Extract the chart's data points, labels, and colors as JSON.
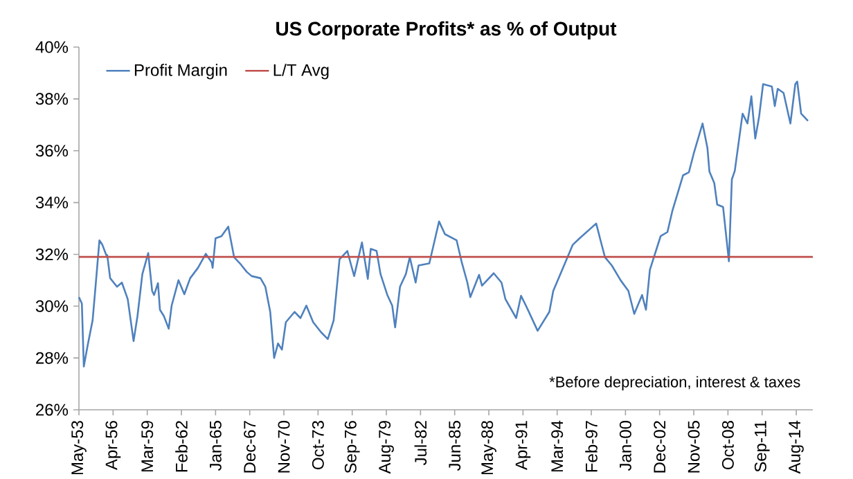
{
  "chart_data": {
    "type": "line",
    "title": "US Corporate Profits* as % of Output",
    "annotations": [
      "*Before depreciation, interest & taxes"
    ],
    "x": [
      "1953-05",
      "1953-08",
      "1953-10",
      "1954-02",
      "1954-07",
      "1954-10",
      "1955-02",
      "1955-05",
      "1955-09",
      "1955-10",
      "1956-01",
      "1956-08",
      "1957-01",
      "1957-07",
      "1958-01",
      "1958-05",
      "1958-10",
      "1959-04",
      "1959-08",
      "1959-10",
      "1960-02",
      "1960-04",
      "1960-08",
      "1961-01",
      "1961-04",
      "1961-11",
      "1962-05",
      "1962-11",
      "1963-07",
      "1964-03",
      "1964-09",
      "1964-10",
      "1965-01",
      "1965-07",
      "1966-02",
      "1966-08",
      "1967-02",
      "1967-09",
      "1968-02",
      "1968-11",
      "1969-04",
      "1969-09",
      "1970-01",
      "1970-05",
      "1970-09",
      "1971-01",
      "1971-10",
      "1972-04",
      "1972-10",
      "1973-05",
      "1974-01",
      "1974-08",
      "1975-02",
      "1975-08",
      "1976-04",
      "1976-08",
      "1976-11",
      "1977-07",
      "1978-01",
      "1978-04",
      "1978-10",
      "1979-02",
      "1979-09",
      "1980-02",
      "1980-05",
      "1980-10",
      "1981-04",
      "1981-08",
      "1982-02",
      "1982-05",
      "1983-04",
      "1983-09",
      "1984-02",
      "1984-08",
      "1985-08",
      "1986-01",
      "1986-07",
      "1986-10",
      "1987-07",
      "1987-10",
      "1988-10",
      "1989-06",
      "1989-10",
      "1990-09",
      "1991-02",
      "1991-07",
      "1992-07",
      "1993-07",
      "1993-11",
      "1994-09",
      "1995-07",
      "1996-02",
      "1997-07",
      "1997-12",
      "1998-04",
      "1998-11",
      "1999-08",
      "2000-04",
      "2000-10",
      "2001-06",
      "2001-10",
      "2002-02",
      "2003-01",
      "2003-08",
      "2004-01",
      "2004-12",
      "2005-06",
      "2005-11",
      "2006-08",
      "2007-01",
      "2007-03",
      "2007-08",
      "2007-11",
      "2008-05",
      "2008-11",
      "2009-02",
      "2009-05",
      "2010-01",
      "2010-06",
      "2010-10",
      "2011-02",
      "2011-06",
      "2011-10",
      "2012-07",
      "2012-10",
      "2013-01",
      "2013-07",
      "2014-02",
      "2014-07",
      "2014-09",
      "2015-01",
      "2015-08"
    ],
    "series": [
      {
        "name": "Profit Margin",
        "color": "#4f81bd",
        "values": [
          30.35,
          30.1,
          27.67,
          28.5,
          29.45,
          30.75,
          32.54,
          32.37,
          31.97,
          31.97,
          31.08,
          30.75,
          30.91,
          30.27,
          28.65,
          29.62,
          31.24,
          32.05,
          30.59,
          30.43,
          30.89,
          29.86,
          29.62,
          29.13,
          30.02,
          31.0,
          30.46,
          31.08,
          31.48,
          32.02,
          31.69,
          31.48,
          32.62,
          32.7,
          33.07,
          31.89,
          31.65,
          31.32,
          31.16,
          31.08,
          30.75,
          29.78,
          28.0,
          28.56,
          28.32,
          29.38,
          29.78,
          29.54,
          30.02,
          29.38,
          29.0,
          28.73,
          29.45,
          31.81,
          32.13,
          31.57,
          31.16,
          32.46,
          31.05,
          32.21,
          32.13,
          31.24,
          30.43,
          30.02,
          29.18,
          30.75,
          31.24,
          31.89,
          30.91,
          31.57,
          31.65,
          32.46,
          33.27,
          32.78,
          32.54,
          31.73,
          30.91,
          30.35,
          31.21,
          30.79,
          31.27,
          30.91,
          30.27,
          29.54,
          30.4,
          30.02,
          29.05,
          29.78,
          30.59,
          31.48,
          32.37,
          32.62,
          33.19,
          32.46,
          31.89,
          31.57,
          31.0,
          30.59,
          29.7,
          30.43,
          29.86,
          31.4,
          32.7,
          32.86,
          33.67,
          35.05,
          35.17,
          35.9,
          37.05,
          36.1,
          35.2,
          34.75,
          33.92,
          33.83,
          31.73,
          34.89,
          35.22,
          37.43,
          37.05,
          38.1,
          36.47,
          37.33,
          38.57,
          38.48,
          37.72,
          38.39,
          38.23,
          37.05,
          38.57,
          38.67,
          37.43,
          37.15
        ]
      }
    ],
    "xlim": [
      "1953-05",
      "2016-01"
    ],
    "xticks": [
      {
        "value": "1953-05",
        "label": "May-53"
      },
      {
        "value": "1956-04",
        "label": "Apr-56"
      },
      {
        "value": "1959-03",
        "label": "Mar-59"
      },
      {
        "value": "1962-02",
        "label": "Feb-62"
      },
      {
        "value": "1965-01",
        "label": "Jan-65"
      },
      {
        "value": "1967-12",
        "label": "Dec-67"
      },
      {
        "value": "1970-11",
        "label": "Nov-70"
      },
      {
        "value": "1973-10",
        "label": "Oct-73"
      },
      {
        "value": "1976-09",
        "label": "Sep-76"
      },
      {
        "value": "1979-08",
        "label": "Aug-79"
      },
      {
        "value": "1982-07",
        "label": "Jul-82"
      },
      {
        "value": "1985-06",
        "label": "Jun-85"
      },
      {
        "value": "1988-05",
        "label": "May-88"
      },
      {
        "value": "1991-04",
        "label": "Apr-91"
      },
      {
        "value": "1994-03",
        "label": "Mar-94"
      },
      {
        "value": "1997-02",
        "label": "Feb-97"
      },
      {
        "value": "2000-01",
        "label": "Jan-00"
      },
      {
        "value": "2002-12",
        "label": "Dec-02"
      },
      {
        "value": "2005-11",
        "label": "Nov-05"
      },
      {
        "value": "2008-10",
        "label": "Oct-08"
      },
      {
        "value": "2011-09",
        "label": "Sep-11"
      },
      {
        "value": "2014-08",
        "label": "Aug-14"
      }
    ],
    "ylim": [
      26,
      40
    ],
    "yticks": [
      {
        "value": 26,
        "label": "26%"
      },
      {
        "value": 28,
        "label": "28%"
      },
      {
        "value": 30,
        "label": "30%"
      },
      {
        "value": 32,
        "label": "32%"
      },
      {
        "value": 34,
        "label": "34%"
      },
      {
        "value": 36,
        "label": "36%"
      },
      {
        "value": 38,
        "label": "38%"
      },
      {
        "value": 40,
        "label": "40%"
      }
    ],
    "ref_lines": [
      {
        "axis": "y",
        "value": 31.9,
        "label": "L/T Avg",
        "color": "#c0504d"
      }
    ],
    "legend": "top left",
    "grid": false,
    "marker": "none",
    "line_style": "solid"
  }
}
